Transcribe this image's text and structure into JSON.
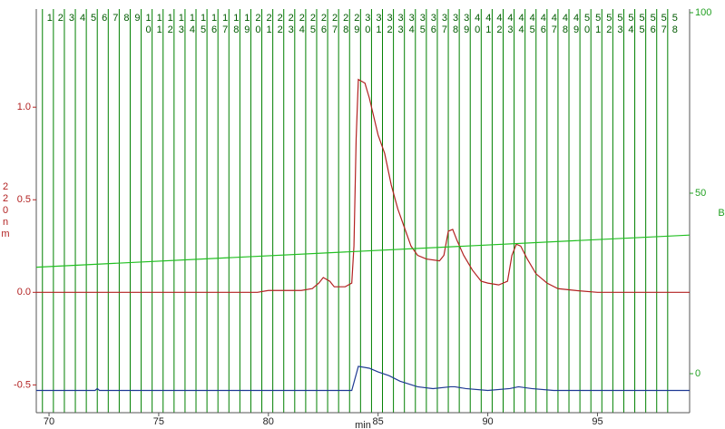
{
  "chart_data": {
    "type": "line",
    "x_label": "min",
    "y_label": "220nm",
    "y2_label": "B",
    "xlim": [
      69.42,
      99.2
    ],
    "xticks": [
      70,
      75,
      80,
      85,
      90,
      95
    ],
    "ylim": [
      -0.65,
      1.53
    ],
    "yticks": [
      {
        "value": -0.5,
        "label": "-0.5"
      },
      {
        "value": 0,
        "label": "0.0"
      },
      {
        "value": 0.5,
        "label": "0.5"
      },
      {
        "value": 1,
        "label": "1.0"
      }
    ],
    "y2lim": [
      -10.8,
      101
    ],
    "y2ticks": [
      0,
      50,
      100
    ],
    "fractions": {
      "color": "#008000",
      "labels": [
        "1",
        "2",
        "3",
        "4",
        "5",
        "6",
        "7",
        "8",
        "9",
        "10",
        "11",
        "12",
        "13",
        "14",
        "15",
        "16",
        "17",
        "18",
        "19",
        "20",
        "21",
        "22",
        "23",
        "24",
        "25",
        "26",
        "27",
        "28",
        "29",
        "30",
        "31",
        "32",
        "33",
        "34",
        "35",
        "36",
        "37",
        "38",
        "39",
        "40",
        "41",
        "42",
        "43",
        "44",
        "45",
        "46",
        "47",
        "48",
        "49",
        "50",
        "51",
        "52",
        "53",
        "54",
        "55",
        "56",
        "57",
        "58"
      ],
      "x": [
        69.7,
        70.2,
        70.7,
        71.2,
        71.7,
        72.2,
        72.7,
        73.2,
        73.7,
        74.2,
        74.7,
        75.2,
        75.7,
        76.2,
        76.7,
        77.2,
        77.7,
        78.2,
        78.7,
        79.2,
        79.7,
        80.2,
        80.7,
        81.2,
        81.7,
        82.2,
        82.7,
        83.2,
        83.7,
        84.2,
        84.7,
        85.2,
        85.7,
        86.2,
        86.7,
        87.2,
        87.7,
        88.2,
        88.7,
        89.2,
        89.7,
        90.2,
        90.7,
        91.2,
        91.7,
        92.2,
        92.7,
        93.2,
        93.7,
        94.2,
        94.7,
        95.2,
        95.7,
        96.2,
        96.7,
        97.2,
        97.7,
        98.2
      ]
    },
    "series": [
      {
        "color": "#b22222",
        "x": [
          69.42,
          79.5,
          80.0,
          81.5,
          82.0,
          82.3,
          82.5,
          82.8,
          83.0,
          83.5,
          83.8,
          83.9,
          84.0,
          84.1,
          84.4,
          84.6,
          84.8,
          85.0,
          85.3,
          85.6,
          85.9,
          86.2,
          86.5,
          86.8,
          87.2,
          87.8,
          88.0,
          88.2,
          88.4,
          88.6,
          88.9,
          89.3,
          89.7,
          90.0,
          90.5,
          90.9,
          91.1,
          91.3,
          91.5,
          91.8,
          92.2,
          92.7,
          93.2,
          94.0,
          95.0,
          99.2
        ],
        "values": [
          0,
          0,
          0.01,
          0.01,
          0.02,
          0.05,
          0.08,
          0.06,
          0.03,
          0.03,
          0.05,
          0.25,
          0.83,
          1.15,
          1.13,
          1.05,
          0.95,
          0.85,
          0.75,
          0.58,
          0.45,
          0.35,
          0.25,
          0.2,
          0.18,
          0.17,
          0.2,
          0.33,
          0.34,
          0.28,
          0.2,
          0.12,
          0.06,
          0.05,
          0.04,
          0.06,
          0.2,
          0.26,
          0.25,
          0.18,
          0.1,
          0.05,
          0.02,
          0.01,
          0,
          0
        ]
      },
      {
        "color": "#1f3a93",
        "x": [
          69.42,
          72.1,
          72.2,
          72.3,
          83.8,
          84.1,
          84.6,
          85.0,
          85.5,
          86.0,
          86.8,
          87.5,
          88.3,
          88.5,
          89.0,
          90.0,
          91.0,
          91.4,
          92.0,
          93.0,
          99.2
        ],
        "values": [
          -0.53,
          -0.53,
          -0.52,
          -0.53,
          -0.53,
          -0.4,
          -0.41,
          -0.43,
          -0.45,
          -0.48,
          -0.51,
          -0.52,
          -0.51,
          -0.51,
          -0.52,
          -0.53,
          -0.52,
          -0.51,
          -0.52,
          -0.53,
          -0.53
        ]
      },
      {
        "color": "#22c022",
        "axis": "y2",
        "x": [
          69.42,
          99.2
        ],
        "values": [
          29.5,
          38.4
        ]
      }
    ]
  }
}
